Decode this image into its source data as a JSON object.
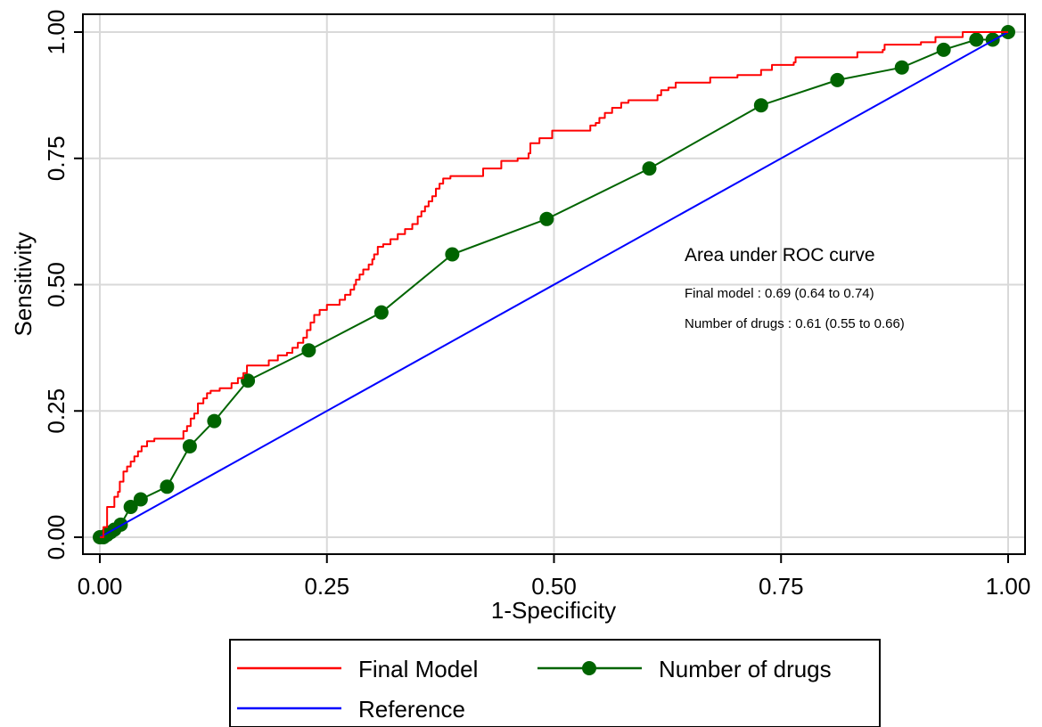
{
  "chart_data": {
    "type": "line",
    "title": "",
    "xlabel": "1-Specificity",
    "ylabel": "Sensitivity",
    "xlim": [
      0,
      1
    ],
    "ylim": [
      0,
      1
    ],
    "x_ticks": [
      "0.00",
      "0.25",
      "0.50",
      "0.75",
      "1.00"
    ],
    "y_ticks": [
      "0.00",
      "0.25",
      "0.50",
      "0.75",
      "1.00"
    ],
    "grid": true,
    "legend_position": "bottom",
    "colors": {
      "final_model": "#ff0000",
      "number_of_drugs": "#006400",
      "reference": "#0000ff"
    },
    "series": [
      {
        "name": "Final Model",
        "style": "step",
        "points": [
          [
            0,
            0
          ],
          [
            0.004,
            0.01
          ],
          [
            0.004,
            0.02
          ],
          [
            0.008,
            0.02
          ],
          [
            0.008,
            0.06
          ],
          [
            0.014,
            0.06
          ],
          [
            0.016,
            0.08
          ],
          [
            0.02,
            0.09
          ],
          [
            0.022,
            0.11
          ],
          [
            0.026,
            0.13
          ],
          [
            0.03,
            0.14
          ],
          [
            0.034,
            0.15
          ],
          [
            0.038,
            0.16
          ],
          [
            0.042,
            0.17
          ],
          [
            0.046,
            0.18
          ],
          [
            0.052,
            0.19
          ],
          [
            0.06,
            0.19
          ],
          [
            0.06,
            0.195
          ],
          [
            0.09,
            0.195
          ],
          [
            0.092,
            0.21
          ],
          [
            0.096,
            0.22
          ],
          [
            0.1,
            0.235
          ],
          [
            0.104,
            0.245
          ],
          [
            0.108,
            0.265
          ],
          [
            0.114,
            0.275
          ],
          [
            0.118,
            0.285
          ],
          [
            0.122,
            0.29
          ],
          [
            0.132,
            0.295
          ],
          [
            0.145,
            0.305
          ],
          [
            0.152,
            0.315
          ],
          [
            0.158,
            0.325
          ],
          [
            0.162,
            0.34
          ],
          [
            0.182,
            0.34
          ],
          [
            0.186,
            0.35
          ],
          [
            0.196,
            0.36
          ],
          [
            0.206,
            0.365
          ],
          [
            0.212,
            0.375
          ],
          [
            0.218,
            0.385
          ],
          [
            0.224,
            0.395
          ],
          [
            0.228,
            0.41
          ],
          [
            0.232,
            0.425
          ],
          [
            0.236,
            0.44
          ],
          [
            0.242,
            0.45
          ],
          [
            0.25,
            0.46
          ],
          [
            0.26,
            0.46
          ],
          [
            0.264,
            0.47
          ],
          [
            0.27,
            0.48
          ],
          [
            0.276,
            0.49
          ],
          [
            0.28,
            0.5
          ],
          [
            0.282,
            0.51
          ],
          [
            0.286,
            0.52
          ],
          [
            0.29,
            0.53
          ],
          [
            0.296,
            0.54
          ],
          [
            0.3,
            0.55
          ],
          [
            0.302,
            0.56
          ],
          [
            0.306,
            0.575
          ],
          [
            0.312,
            0.58
          ],
          [
            0.32,
            0.59
          ],
          [
            0.328,
            0.6
          ],
          [
            0.336,
            0.61
          ],
          [
            0.344,
            0.62
          ],
          [
            0.35,
            0.635
          ],
          [
            0.354,
            0.645
          ],
          [
            0.358,
            0.655
          ],
          [
            0.362,
            0.665
          ],
          [
            0.366,
            0.675
          ],
          [
            0.37,
            0.69
          ],
          [
            0.374,
            0.7
          ],
          [
            0.378,
            0.71
          ],
          [
            0.386,
            0.715
          ],
          [
            0.418,
            0.715
          ],
          [
            0.422,
            0.73
          ],
          [
            0.44,
            0.73
          ],
          [
            0.442,
            0.745
          ],
          [
            0.46,
            0.75
          ],
          [
            0.472,
            0.76
          ],
          [
            0.474,
            0.78
          ],
          [
            0.48,
            0.78
          ],
          [
            0.484,
            0.79
          ],
          [
            0.496,
            0.79
          ],
          [
            0.498,
            0.805
          ],
          [
            0.538,
            0.805
          ],
          [
            0.54,
            0.815
          ],
          [
            0.546,
            0.82
          ],
          [
            0.55,
            0.83
          ],
          [
            0.556,
            0.84
          ],
          [
            0.564,
            0.85
          ],
          [
            0.574,
            0.86
          ],
          [
            0.582,
            0.865
          ],
          [
            0.61,
            0.865
          ],
          [
            0.614,
            0.875
          ],
          [
            0.618,
            0.885
          ],
          [
            0.626,
            0.89
          ],
          [
            0.634,
            0.9
          ],
          [
            0.668,
            0.9
          ],
          [
            0.672,
            0.91
          ],
          [
            0.7,
            0.91
          ],
          [
            0.702,
            0.915
          ],
          [
            0.724,
            0.915
          ],
          [
            0.728,
            0.925
          ],
          [
            0.74,
            0.935
          ],
          [
            0.764,
            0.94
          ],
          [
            0.766,
            0.95
          ],
          [
            0.832,
            0.95
          ],
          [
            0.834,
            0.96
          ],
          [
            0.862,
            0.965
          ],
          [
            0.864,
            0.975
          ],
          [
            0.9,
            0.975
          ],
          [
            0.904,
            0.98
          ],
          [
            0.92,
            0.99
          ],
          [
            0.934,
            0.99
          ],
          [
            0.95,
            1.0
          ],
          [
            1.0,
            1.0
          ]
        ]
      },
      {
        "name": "Number of drugs",
        "style": "line-markers",
        "points": [
          [
            0.0,
            0.0
          ],
          [
            0.004,
            0.0
          ],
          [
            0.008,
            0.005
          ],
          [
            0.012,
            0.01
          ],
          [
            0.016,
            0.015
          ],
          [
            0.023,
            0.025
          ],
          [
            0.034,
            0.06
          ],
          [
            0.045,
            0.075
          ],
          [
            0.074,
            0.1
          ],
          [
            0.099,
            0.18
          ],
          [
            0.126,
            0.23
          ],
          [
            0.163,
            0.31
          ],
          [
            0.23,
            0.37
          ],
          [
            0.31,
            0.445
          ],
          [
            0.388,
            0.56
          ],
          [
            0.492,
            0.63
          ],
          [
            0.605,
            0.73
          ],
          [
            0.728,
            0.855
          ],
          [
            0.812,
            0.905
          ],
          [
            0.883,
            0.93
          ],
          [
            0.929,
            0.965
          ],
          [
            0.965,
            0.985
          ],
          [
            0.983,
            0.985
          ],
          [
            1.0,
            1.0
          ]
        ]
      },
      {
        "name": "Reference",
        "style": "line",
        "points": [
          [
            0,
            0
          ],
          [
            1,
            1
          ]
        ]
      }
    ],
    "annotations": {
      "title": "Area under ROC curve",
      "line1": "Final model : 0.69 (0.64 to 0.74)",
      "line2": "Number of drugs : 0.61 (0.55 to 0.66)"
    }
  }
}
